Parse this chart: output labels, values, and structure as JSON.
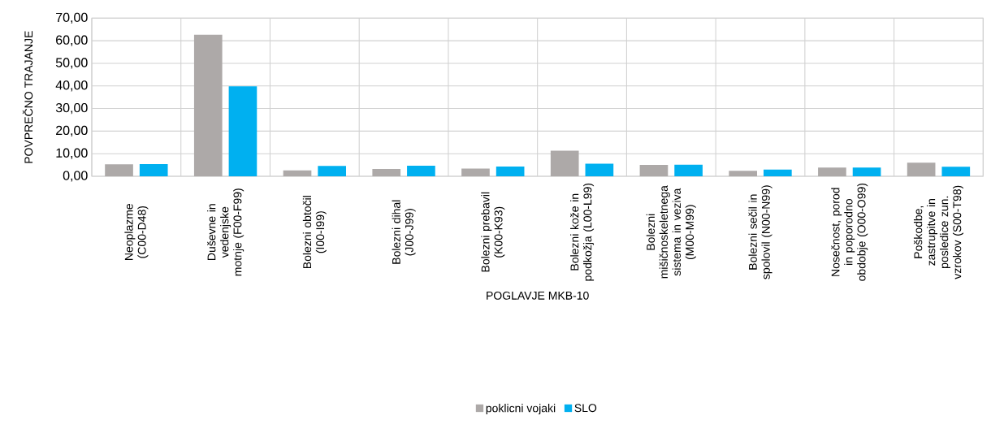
{
  "chart_data": {
    "type": "bar",
    "xlabel": "POGLAVJE MKB-10",
    "ylabel": "POVPREČNO TRAJANJE",
    "categories": [
      "Neoplazme (C00-D48)",
      "Duševne in vedenjske motnje (F00-F99)",
      "Bolezni obtočil (I00-I99)",
      "Bolezni dihal (J00-J99)",
      "Bolezni prebavil (K00-K93)",
      "Bolezni kože in podkožja (L00-L99)",
      "Bolezni mišičnoskeletnega sistema in veziva (M00-M99)",
      "Bolezni sečil in spolovil (N00-N99)",
      "Nosečnost, porod in poporodno obdobje (O00-O99)",
      "Poškodbe, zastrupitve in posledice zun. vzrokov (S00-T98)"
    ],
    "series": [
      {
        "name": "poklicni vojaki",
        "color": "#ada9a8",
        "values": [
          5.3,
          62.7,
          2.6,
          3.2,
          3.4,
          11.3,
          5.0,
          2.4,
          3.9,
          6.0
        ]
      },
      {
        "name": "SLO",
        "color": "#00b0f0",
        "values": [
          5.4,
          39.8,
          4.6,
          4.7,
          4.3,
          5.6,
          5.1,
          3.0,
          3.9,
          4.2
        ]
      }
    ],
    "ylim": [
      0,
      70
    ],
    "yticks": [
      {
        "value": 0,
        "label": "0,00"
      },
      {
        "value": 10,
        "label": "10,00"
      },
      {
        "value": 20,
        "label": "20,00"
      },
      {
        "value": 30,
        "label": "30,00"
      },
      {
        "value": 40,
        "label": "40,00"
      },
      {
        "value": 50,
        "label": "50,00"
      },
      {
        "value": 60,
        "label": "60,00"
      },
      {
        "value": 70,
        "label": "70,00"
      }
    ],
    "grid": true,
    "legend": "bottom"
  }
}
